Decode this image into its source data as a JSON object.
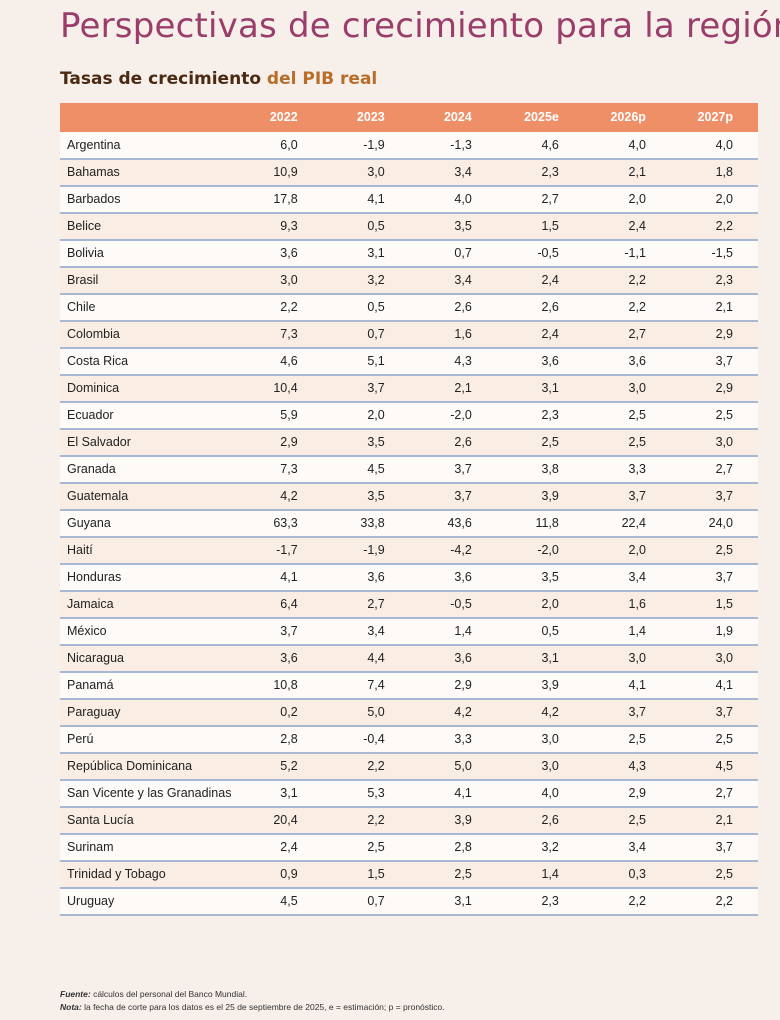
{
  "title": "Perspectivas de crecimiento para la región",
  "subtitle": {
    "part1": "Tasas de crecimiento",
    "part2": "del PIB real"
  },
  "colors": {
    "title": "#9b3d6b",
    "header_bg": "#ef8f67",
    "subtitle_accent": "#b76e2a",
    "row_border": "#a9b8d2"
  },
  "table": {
    "columns": [
      "",
      "2022",
      "2023",
      "2024",
      "2025e",
      "2026p",
      "2027p"
    ],
    "rows": [
      [
        "Argentina",
        "6,0",
        "-1,9",
        "-1,3",
        "4,6",
        "4,0",
        "4,0"
      ],
      [
        "Bahamas",
        "10,9",
        "3,0",
        "3,4",
        "2,3",
        "2,1",
        "1,8"
      ],
      [
        "Barbados",
        "17,8",
        "4,1",
        "4,0",
        "2,7",
        "2,0",
        "2,0"
      ],
      [
        "Belice",
        "9,3",
        "0,5",
        "3,5",
        "1,5",
        "2,4",
        "2,2"
      ],
      [
        "Bolivia",
        "3,6",
        "3,1",
        "0,7",
        "-0,5",
        "-1,1",
        "-1,5"
      ],
      [
        "Brasil",
        "3,0",
        "3,2",
        "3,4",
        "2,4",
        "2,2",
        "2,3"
      ],
      [
        "Chile",
        "2,2",
        "0,5",
        "2,6",
        "2,6",
        "2,2",
        "2,1"
      ],
      [
        "Colombia",
        "7,3",
        "0,7",
        "1,6",
        "2,4",
        "2,7",
        "2,9"
      ],
      [
        "Costa Rica",
        "4,6",
        "5,1",
        "4,3",
        "3,6",
        "3,6",
        "3,7"
      ],
      [
        "Dominica",
        "10,4",
        "3,7",
        "2,1",
        "3,1",
        "3,0",
        "2,9"
      ],
      [
        "Ecuador",
        "5,9",
        "2,0",
        "-2,0",
        "2,3",
        "2,5",
        "2,5"
      ],
      [
        "El Salvador",
        "2,9",
        "3,5",
        "2,6",
        "2,5",
        "2,5",
        "3,0"
      ],
      [
        "Granada",
        "7,3",
        "4,5",
        "3,7",
        "3,8",
        "3,3",
        "2,7"
      ],
      [
        "Guatemala",
        "4,2",
        "3,5",
        "3,7",
        "3,9",
        "3,7",
        "3,7"
      ],
      [
        "Guyana",
        "63,3",
        "33,8",
        "43,6",
        "11,8",
        "22,4",
        "24,0"
      ],
      [
        "Haití",
        "-1,7",
        "-1,9",
        "-4,2",
        "-2,0",
        "2,0",
        "2,5"
      ],
      [
        "Honduras",
        "4,1",
        "3,6",
        "3,6",
        "3,5",
        "3,4",
        "3,7"
      ],
      [
        "Jamaica",
        "6,4",
        "2,7",
        "-0,5",
        "2,0",
        "1,6",
        "1,5"
      ],
      [
        "México",
        "3,7",
        "3,4",
        "1,4",
        "0,5",
        "1,4",
        "1,9"
      ],
      [
        "Nicaragua",
        "3,6",
        "4,4",
        "3,6",
        "3,1",
        "3,0",
        "3,0"
      ],
      [
        "Panamá",
        "10,8",
        "7,4",
        "2,9",
        "3,9",
        "4,1",
        "4,1"
      ],
      [
        "Paraguay",
        "0,2",
        "5,0",
        "4,2",
        "4,2",
        "3,7",
        "3,7"
      ],
      [
        "Perú",
        "2,8",
        "-0,4",
        "3,3",
        "3,0",
        "2,5",
        "2,5"
      ],
      [
        "República Dominicana",
        "5,2",
        "2,2",
        "5,0",
        "3,0",
        "4,3",
        "4,5"
      ],
      [
        "San Vicente y las Granadinas",
        "3,1",
        "5,3",
        "4,1",
        "4,0",
        "2,9",
        "2,7"
      ],
      [
        "Santa Lucía",
        "20,4",
        "2,2",
        "3,9",
        "2,6",
        "2,5",
        "2,1"
      ],
      [
        "Surinam",
        "2,4",
        "2,5",
        "2,8",
        "3,2",
        "3,4",
        "3,7"
      ],
      [
        "Trinidad y Tobago",
        "0,9",
        "1,5",
        "2,5",
        "1,4",
        "0,3",
        "2,5"
      ],
      [
        "Uruguay",
        "4,5",
        "0,7",
        "3,1",
        "2,3",
        "2,2",
        "2,2"
      ]
    ]
  },
  "notes": {
    "source_label": "Fuente:",
    "source_text": " cálculos del personal del Banco Mundial.",
    "note_label": "Nota:",
    "note_text": " la fecha de corte para los datos es el 25 de septiembre de 2025, e = estimación; p = pronóstico."
  }
}
